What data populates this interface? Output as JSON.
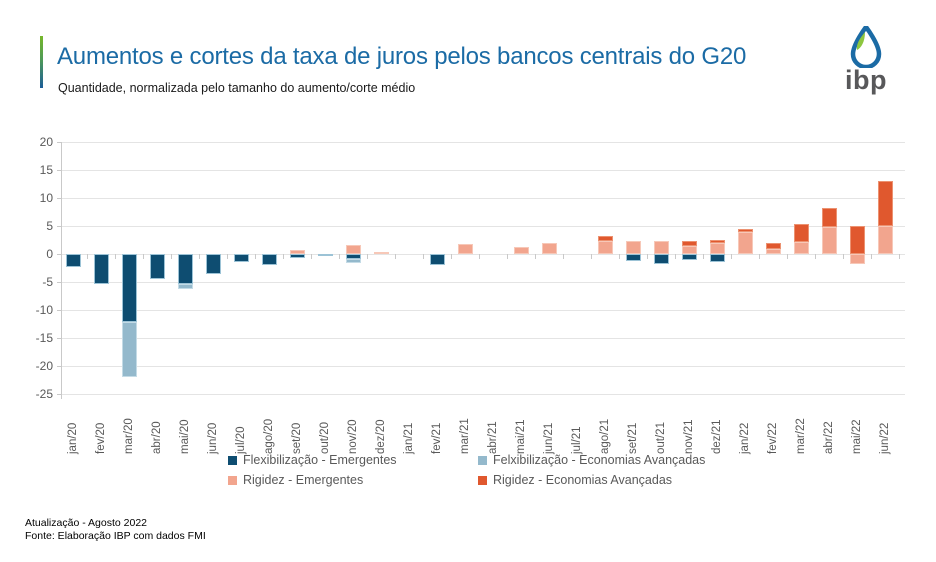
{
  "header": {
    "title": "Aumentos e cortes da taxa de juros pelos bancos centrais do G20",
    "subtitle": "Quantidade, normalizada pelo  tamanho do aumento/corte médio",
    "title_color": "#1b6ba5",
    "accent_top_color": "#76b82a",
    "accent_bottom_color": "#1c5d99"
  },
  "logo": {
    "text": "ibp",
    "drop_blue": "#1b6ba5",
    "drop_green": "#8dc63f",
    "text_color": "#58585a"
  },
  "chart_data": {
    "type": "bar",
    "stacked": true,
    "grid": true,
    "legend_position": "bottom",
    "ylim": [
      -25,
      20
    ],
    "ytick_step": 5,
    "yticks": [
      20,
      15,
      10,
      5,
      0,
      -5,
      -10,
      -15,
      -20,
      -25
    ],
    "categories": [
      "jan/20",
      "fev/20",
      "mar/20",
      "abr/20",
      "mai/20",
      "jun/20",
      "jul/20",
      "ago/20",
      "set/20",
      "out/20",
      "nov/20",
      "dez/20",
      "jan/21",
      "fev/21",
      "mar/21",
      "abr/21",
      "mai/21",
      "jun/21",
      "jul/21",
      "ago/21",
      "set/21",
      "out/21",
      "nov/21",
      "dez/21",
      "jan/22",
      "fev/22",
      "mar/22",
      "abr/22",
      "mai/22",
      "jun/22"
    ],
    "series": [
      {
        "name": "Flexibilização - Emergentes",
        "color": "#0e4d71",
        "edge": "#9cc3d6",
        "values": [
          -2.3,
          -5.4,
          -12.2,
          -4.4,
          -5.4,
          -3.6,
          -1.4,
          -1.9,
          -0.7,
          -0.3,
          -0.9,
          0,
          0,
          -1.9,
          0,
          0,
          0,
          0,
          0,
          0,
          -1.3,
          -1.8,
          -1.1,
          -1.5,
          0,
          0,
          0,
          0,
          0,
          0
        ]
      },
      {
        "name": "Felxibilização - Economias Avançadas",
        "color": "#94b9cc",
        "edge": "#c4dbe6",
        "values": [
          0,
          0,
          -9.8,
          0,
          -0.9,
          0,
          0,
          0,
          0,
          0,
          -0.7,
          0,
          0,
          0,
          0,
          0,
          0,
          0,
          0,
          0,
          0,
          0,
          0,
          0,
          0,
          0,
          0,
          0,
          0,
          0
        ]
      },
      {
        "name": "Rigidez - Emergentes",
        "color": "#f2a58e",
        "edge": "#f7c8b8",
        "values": [
          0,
          0,
          0,
          0,
          0,
          0,
          0,
          0,
          0.8,
          0,
          1.6,
          0.4,
          0,
          0,
          1.7,
          0,
          1.2,
          1.9,
          0,
          2.4,
          2.3,
          2.3,
          1.4,
          2.0,
          3.9,
          0.9,
          2.1,
          4.8,
          -1.8,
          5.0
        ]
      },
      {
        "name": "Rigidez - Economias Avançadas",
        "color": "#e0582e",
        "edge": "#ec9271",
        "values": [
          0,
          0,
          0,
          0,
          0,
          0,
          0,
          0,
          0,
          0,
          0,
          0,
          0,
          0,
          0,
          0,
          0,
          0,
          0,
          0.9,
          0,
          0,
          1.0,
          0.5,
          0.6,
          1.1,
          3.3,
          3.4,
          5.0,
          8.0
        ]
      }
    ]
  },
  "footer": {
    "line1": "Atualização - Agosto 2022",
    "line2": "Fonte: Elaboração IBP com dados FMI"
  }
}
